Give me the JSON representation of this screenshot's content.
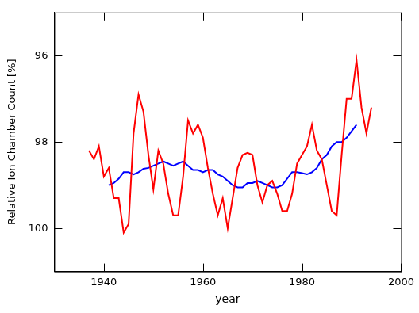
{
  "chart_data": {
    "type": "line",
    "x_label": "year",
    "y_label": "Relative Ion Chamber Count [%]",
    "x": [
      1937,
      1938,
      1939,
      1940,
      1941,
      1942,
      1943,
      1944,
      1945,
      1946,
      1947,
      1948,
      1949,
      1950,
      1951,
      1952,
      1953,
      1954,
      1955,
      1956,
      1957,
      1958,
      1959,
      1960,
      1961,
      1962,
      1963,
      1964,
      1965,
      1966,
      1967,
      1968,
      1969,
      1970,
      1971,
      1972,
      1973,
      1974,
      1975,
      1976,
      1977,
      1978,
      1979,
      1980,
      1981,
      1982,
      1983,
      1984,
      1985,
      1986,
      1987,
      1988,
      1989,
      1990,
      1991,
      1992,
      1993,
      1994
    ],
    "series": [
      {
        "color": "#ff0000",
        "values": [
          98.2,
          98.4,
          98.1,
          98.8,
          98.6,
          99.3,
          99.3,
          100.1,
          99.9,
          97.8,
          96.9,
          97.3,
          98.3,
          99.1,
          98.2,
          98.5,
          99.2,
          99.7,
          99.7,
          98.8,
          97.5,
          97.8,
          97.6,
          97.9,
          98.6,
          99.2,
          99.7,
          99.3,
          100.0,
          99.3,
          98.6,
          98.3,
          98.25,
          98.3,
          99.0,
          99.4,
          99.0,
          98.9,
          99.2,
          99.6,
          99.6,
          99.2,
          98.5,
          98.3,
          98.1,
          97.6,
          98.2,
          98.4,
          99.0,
          99.6,
          99.7,
          98.3,
          97.0,
          97.0,
          96.1,
          97.2,
          97.8,
          97.2
        ]
      },
      {
        "color": "#0000ff",
        "values": [
          null,
          null,
          null,
          null,
          99.0,
          98.95,
          98.85,
          98.7,
          98.7,
          98.75,
          98.7,
          98.62,
          98.6,
          98.55,
          98.5,
          98.45,
          98.5,
          98.55,
          98.5,
          98.45,
          98.55,
          98.65,
          98.65,
          98.7,
          98.65,
          98.65,
          98.75,
          98.8,
          98.9,
          99.0,
          99.05,
          99.05,
          98.95,
          98.95,
          98.9,
          98.95,
          99.0,
          99.05,
          99.05,
          99.0,
          98.85,
          98.7,
          98.7,
          98.72,
          98.75,
          98.7,
          98.6,
          98.4,
          98.3,
          98.1,
          98.0,
          98.0,
          97.9,
          97.75,
          97.6,
          null,
          null,
          null
        ]
      }
    ],
    "xlim": [
      1930,
      2000
    ],
    "xticks": [
      1940,
      1960,
      1980,
      2000
    ],
    "ylim": [
      101,
      95
    ],
    "yticks": [
      96,
      98,
      100
    ],
    "grid": false
  }
}
